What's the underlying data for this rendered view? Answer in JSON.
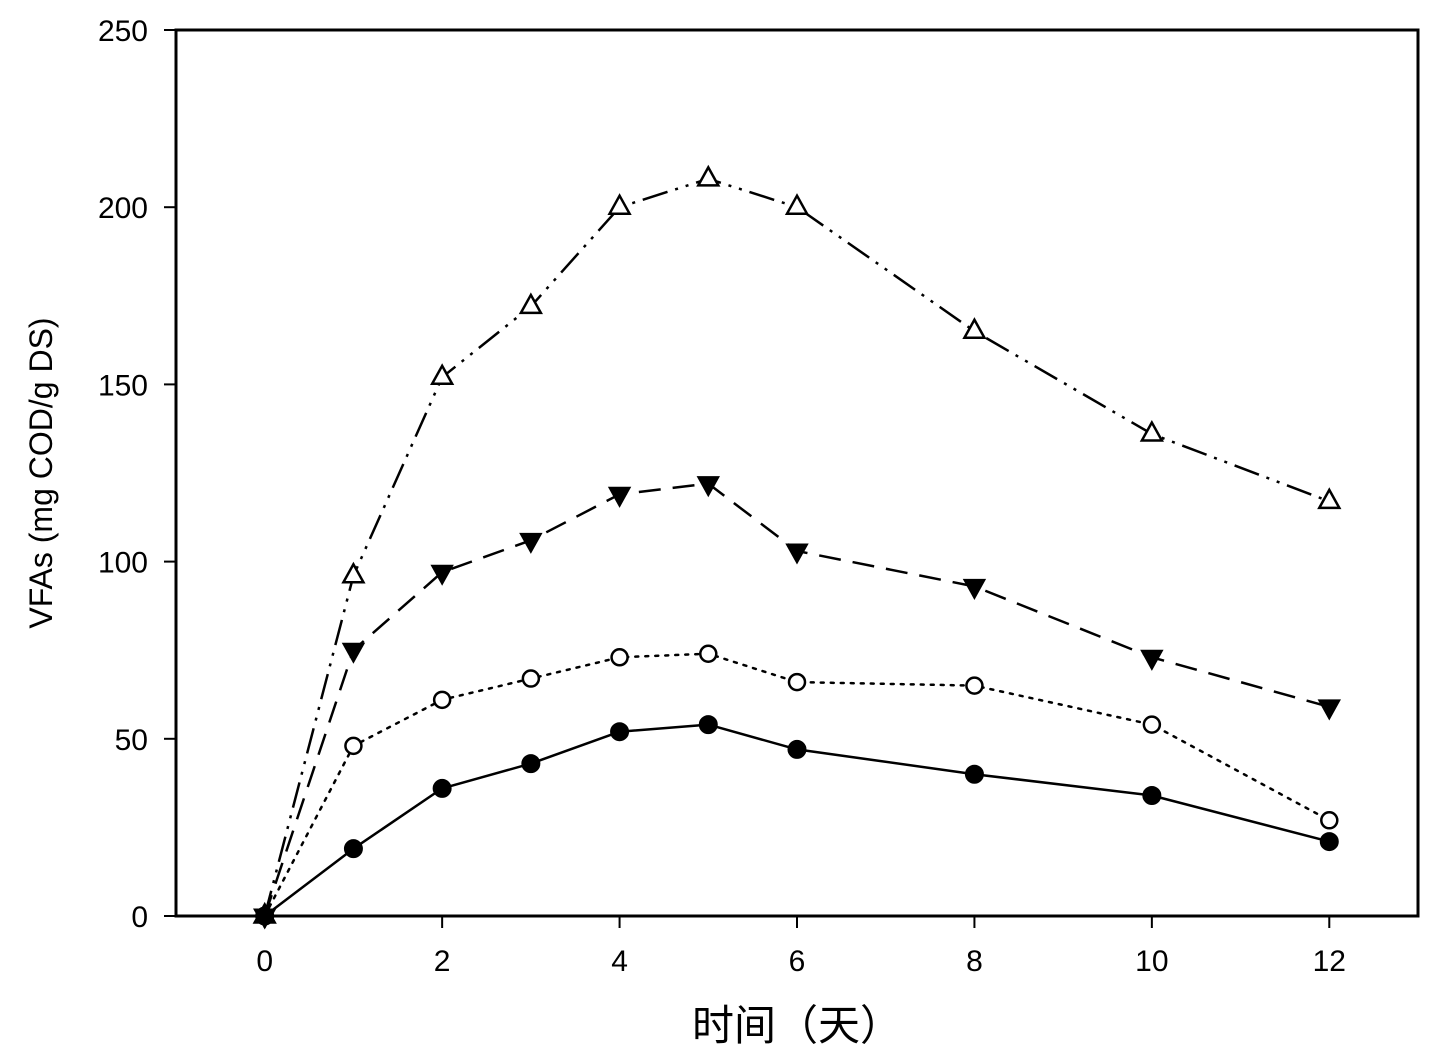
{
  "chart_data": {
    "type": "line",
    "title": "",
    "xlabel": "时间（天）",
    "ylabel": "VFAs (mg COD/g DS)",
    "xlim": [
      -1,
      13
    ],
    "ylim": [
      0,
      250
    ],
    "x_ticks": [
      0,
      2,
      4,
      6,
      8,
      10,
      12
    ],
    "y_ticks": [
      0,
      50,
      100,
      150,
      200,
      250
    ],
    "grid": false,
    "legend": "none",
    "x": [
      0,
      1,
      2,
      3,
      4,
      5,
      6,
      8,
      10,
      12
    ],
    "series": [
      {
        "marker": "open-triangle-up",
        "line_style": "dash-dot-dot",
        "color": "#000000",
        "values": [
          0,
          96,
          152,
          172,
          200,
          208,
          200,
          165,
          136,
          117
        ]
      },
      {
        "marker": "filled-triangle-down",
        "line_style": "dashed",
        "color": "#000000",
        "values": [
          0,
          75,
          97,
          106,
          119,
          122,
          103,
          93,
          73,
          59
        ]
      },
      {
        "marker": "open-circle",
        "line_style": "dotted",
        "color": "#000000",
        "values": [
          0,
          48,
          61,
          67,
          73,
          74,
          66,
          65,
          54,
          27
        ]
      },
      {
        "marker": "filled-circle",
        "line_style": "solid",
        "color": "#000000",
        "values": [
          0,
          19,
          36,
          43,
          52,
          54,
          47,
          40,
          34,
          21
        ]
      }
    ]
  }
}
